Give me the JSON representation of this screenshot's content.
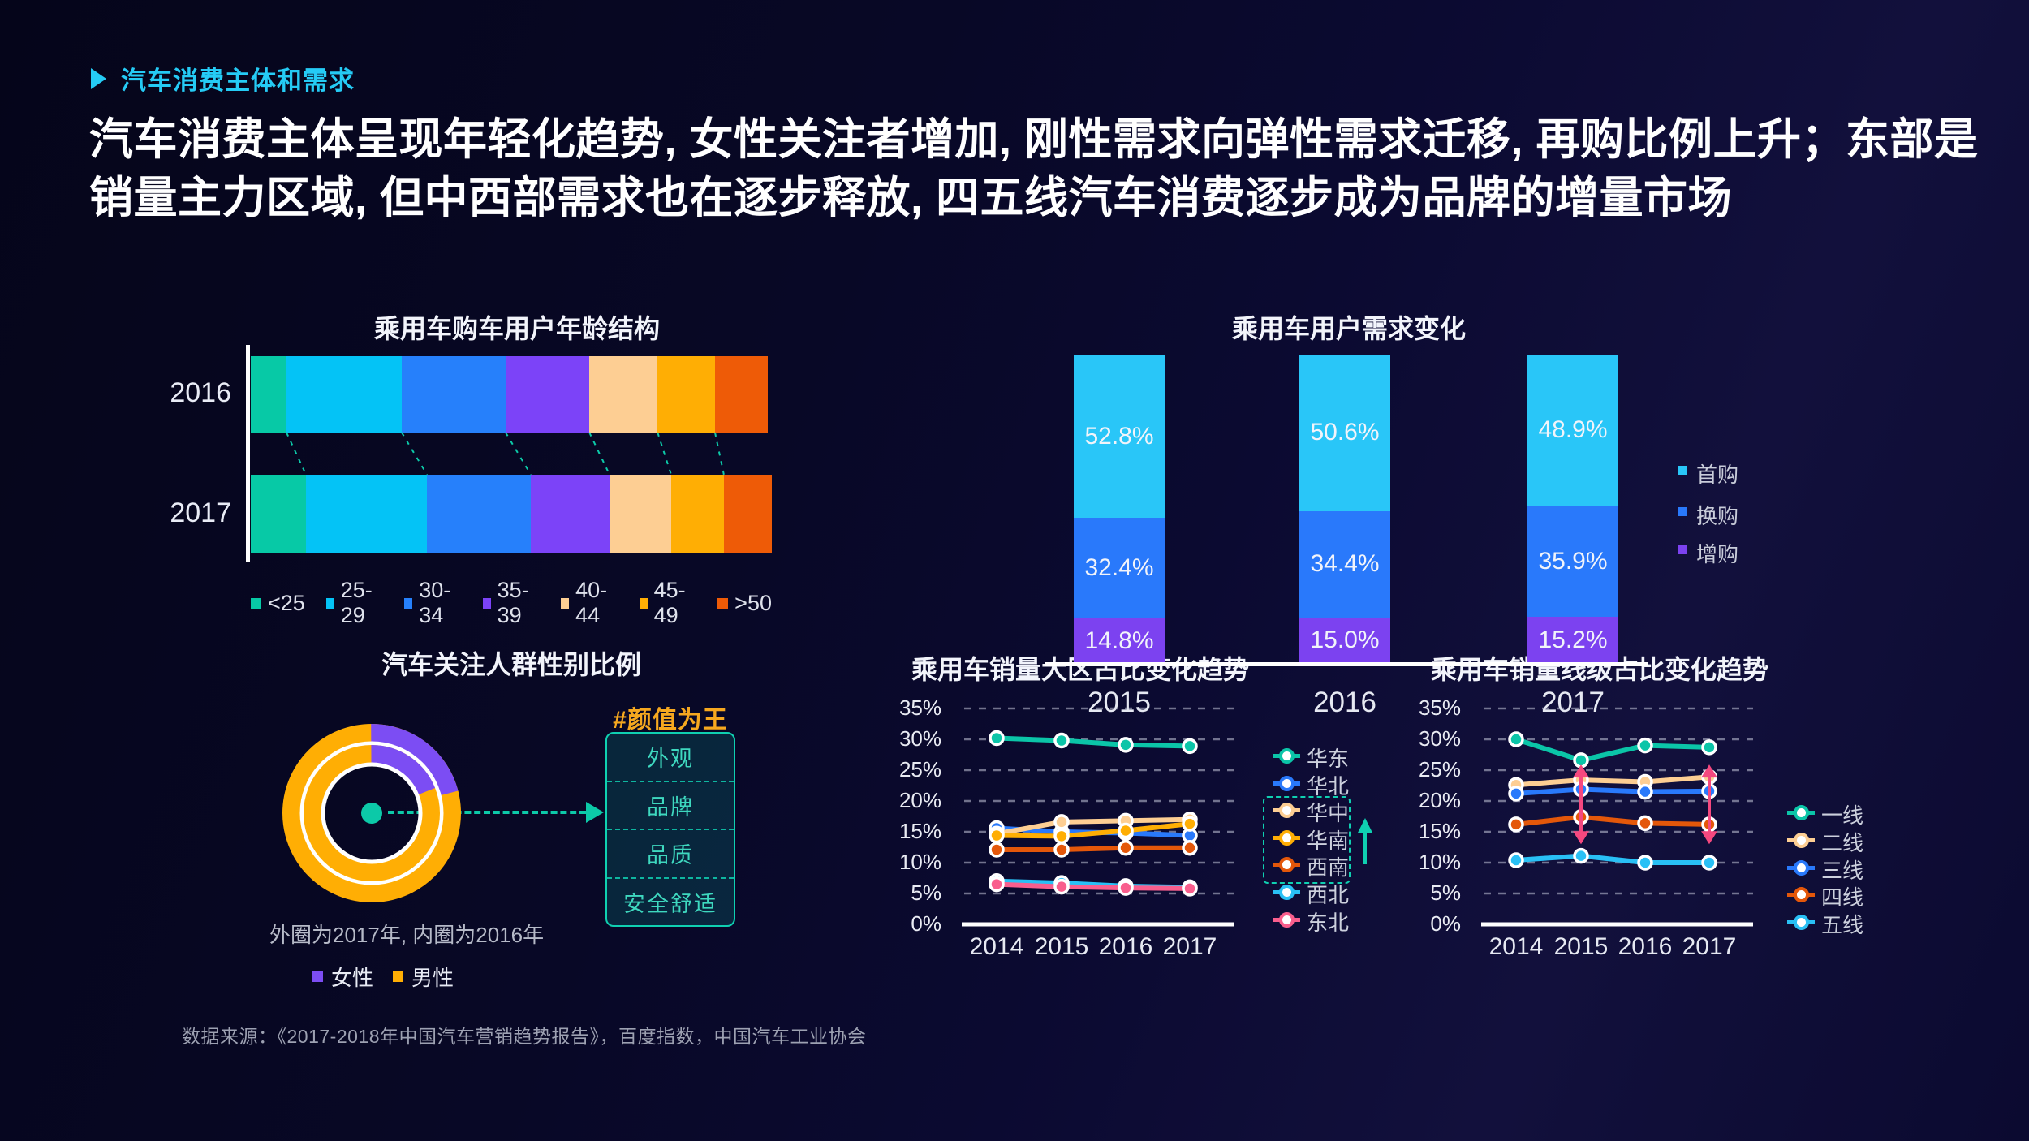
{
  "slide": {
    "kicker": "汽车消费主体和需求",
    "heading_line1": "汽车消费主体呈现年轻化趋势, 女性关注者增加, 刚性需求向弹性需求迁移, 再购比例上升；东部是",
    "heading_line2": "销量主力区域, 但中西部需求也在逐步释放, 四五线汽车消费逐步成为品牌的增量市场",
    "source": "数据来源：《2017-2018年中国汽车营销趋势报告》，百度指数，中国汽车工业协会"
  },
  "colors": {
    "accent_cyan": "#25CBF5",
    "accent_teal": "#0CC9A8",
    "accent_orange_tag": "#F6A81F",
    "accent_pink": "#F5487F",
    "background": "#0b0a31",
    "text_primary": "#FFFFFF",
    "text_muted": "#9da1b2"
  },
  "chart_data": [
    {
      "id": "age",
      "type": "bar",
      "orientation": "horizontal",
      "stacked": true,
      "title": "乘用车购车用户年龄结构",
      "unit": "%",
      "categories": [
        "2016",
        "2017"
      ],
      "series": [
        {
          "name": "<25",
          "color": "#07C9A6",
          "values": [
            6.9,
            10.6
          ]
        },
        {
          "name": "25-29",
          "color": "#04C3F6",
          "values": [
            22.3,
            23.2
          ]
        },
        {
          "name": "30-34",
          "color": "#2680FB",
          "values": [
            20.1,
            19.9
          ]
        },
        {
          "name": "35-39",
          "color": "#7C43F8",
          "values": [
            16.2,
            15.1
          ]
        },
        {
          "name": "40-44",
          "color": "#FDCE93",
          "values": [
            13.2,
            11.8
          ]
        },
        {
          "name": "45-49",
          "color": "#FFAE04",
          "values": [
            11.1,
            10.1
          ]
        },
        {
          "name": ">50",
          "color": "#EE5B07",
          "values": [
            10.2,
            9.2
          ]
        }
      ],
      "legend_position": "bottom",
      "connector_style": "dashed-teal"
    },
    {
      "id": "demand",
      "type": "bar",
      "stacked": true,
      "title": "乘用车用户需求变化",
      "unit": "%",
      "categories": [
        "2015",
        "2016",
        "2017"
      ],
      "series": [
        {
          "name": "首购",
          "color": "#29C6F8",
          "values": [
            52.8,
            50.6,
            48.9
          ]
        },
        {
          "name": "换购",
          "color": "#2979FB",
          "values": [
            32.4,
            34.4,
            35.9
          ]
        },
        {
          "name": "增购",
          "color": "#7C42F0",
          "values": [
            14.8,
            15.0,
            15.2
          ]
        }
      ],
      "value_labels": true,
      "legend_position": "right"
    },
    {
      "id": "gender",
      "type": "pie",
      "variant": "double-donut",
      "title": "汽车关注人群性别比例",
      "rings": [
        {
          "name": "2017",
          "position": "outer",
          "slices": [
            {
              "label": "女性",
              "value": 21,
              "color": "#7C4DF3"
            },
            {
              "label": "男性",
              "value": 79,
              "color": "#FFAE04"
            }
          ]
        },
        {
          "name": "2016",
          "position": "inner",
          "slices": [
            {
              "label": "女性",
              "value": 19,
              "color": "#7C4DF3"
            },
            {
              "label": "男性",
              "value": 81,
              "color": "#FFAE04"
            }
          ]
        }
      ],
      "note": "外圈为2017年, 内圈为2016年",
      "callout": {
        "tag": "#颜值为王",
        "items": [
          "外观",
          "品牌",
          "品质",
          "安全舒适"
        ]
      },
      "center_dot_color": "#0CC9A8"
    },
    {
      "id": "region",
      "type": "line",
      "title": "乘用车销量大区占比变化趋势",
      "x": [
        "2014",
        "2015",
        "2016",
        "2017"
      ],
      "unit": "%",
      "ylim": [
        0,
        35
      ],
      "yticks": [
        "0%",
        "5%",
        "10%",
        "15%",
        "20%",
        "25%",
        "30%",
        "35%"
      ],
      "grid": "dashed",
      "series": [
        {
          "name": "华东",
          "color": "#0BC5A8",
          "values": [
            30.2,
            29.8,
            29.1,
            28.9
          ]
        },
        {
          "name": "华北",
          "color": "#2979FB",
          "values": [
            15.6,
            15.0,
            14.8,
            14.4
          ]
        },
        {
          "name": "华中",
          "color": "#FDCE93",
          "values": [
            14.7,
            16.6,
            16.8,
            17.0
          ]
        },
        {
          "name": "华南",
          "color": "#FFAE04",
          "values": [
            14.4,
            14.3,
            15.2,
            16.3
          ]
        },
        {
          "name": "西南",
          "color": "#E4570A",
          "values": [
            12.1,
            12.1,
            12.4,
            12.4
          ]
        },
        {
          "name": "西北",
          "color": "#29C0F5",
          "values": [
            7.0,
            6.7,
            6.2,
            6.0
          ]
        },
        {
          "name": "东北",
          "color": "#F95E8D",
          "values": [
            6.5,
            6.1,
            5.9,
            5.8
          ]
        }
      ],
      "legend_position": "right",
      "legend_highlight_box": [
        "华中",
        "华南",
        "西南"
      ],
      "legend_annotation": "teal-up-arrow"
    },
    {
      "id": "tier",
      "type": "line",
      "title": "乘用车销量线级占比变化趋势",
      "x": [
        "2014",
        "2015",
        "2016",
        "2017"
      ],
      "unit": "%",
      "ylim": [
        0,
        35
      ],
      "yticks": [
        "0%",
        "5%",
        "10%",
        "15%",
        "20%",
        "25%",
        "30%",
        "35%"
      ],
      "grid": "dashed",
      "series": [
        {
          "name": "一线",
          "color": "#0BC5A8",
          "values": [
            30.0,
            26.6,
            29.0,
            28.7
          ]
        },
        {
          "name": "二线",
          "color": "#FDCE93",
          "values": [
            22.6,
            23.4,
            23.1,
            23.9
          ]
        },
        {
          "name": "三线",
          "color": "#2979FB",
          "values": [
            21.2,
            21.9,
            21.5,
            21.6
          ]
        },
        {
          "name": "四线",
          "color": "#E4570A",
          "values": [
            16.2,
            17.4,
            16.4,
            16.2
          ]
        },
        {
          "name": "五线",
          "color": "#29C0F5",
          "values": [
            10.4,
            11.1,
            10.0,
            10.0
          ]
        }
      ],
      "legend_position": "right",
      "annotations": [
        {
          "type": "range-arrow",
          "x": "2015",
          "from": 13.0,
          "to": 25.9,
          "color": "#F5487F"
        },
        {
          "type": "range-arrow",
          "x": "2017",
          "from": 13.0,
          "to": 25.9,
          "color": "#F5487F"
        }
      ]
    }
  ]
}
